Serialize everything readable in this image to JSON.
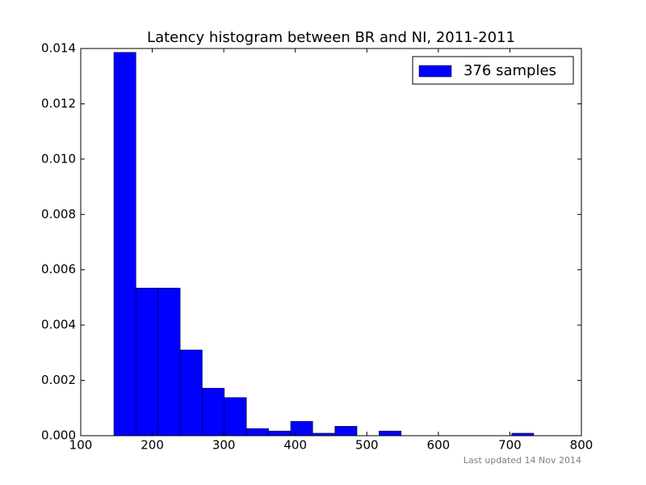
{
  "chart_data": {
    "type": "histogram",
    "title": "Latency histogram between BR and NI, 2011-2011",
    "bins": [
      146.3,
      177.2,
      208.1,
      239.0,
      269.9,
      300.8,
      331.7,
      362.6,
      393.5,
      424.4,
      455.3,
      486.2,
      517.1,
      548.0,
      578.9,
      609.8,
      640.7,
      671.6,
      702.5,
      733.4
    ],
    "series": [
      {
        "name": "376 samples",
        "color": "#0000ff",
        "values": [
          0.01386,
          0.00534,
          0.00534,
          0.0031,
          0.00172,
          0.00138,
          0.00026,
          0.00017,
          0.00052,
          9e-05,
          0.00034,
          0,
          0.00017,
          0,
          0,
          0,
          0,
          0,
          9e-05
        ]
      }
    ],
    "xlim": [
      100,
      800
    ],
    "xticks": [
      100,
      200,
      300,
      400,
      500,
      600,
      700,
      800
    ],
    "ylim": [
      0,
      0.014
    ],
    "yticks": [
      {
        "value": 0,
        "label": "0.000"
      },
      {
        "value": 0.002,
        "label": "0.002"
      },
      {
        "value": 0.004,
        "label": "0.004"
      },
      {
        "value": 0.006,
        "label": "0.006"
      },
      {
        "value": 0.008,
        "label": "0.008"
      },
      {
        "value": 0.01,
        "label": "0.010"
      },
      {
        "value": 0.012,
        "label": "0.012"
      },
      {
        "value": 0.014,
        "label": "0.014"
      }
    ],
    "legend": "upper right",
    "footnote": "Last updated 14 Nov 2014"
  }
}
